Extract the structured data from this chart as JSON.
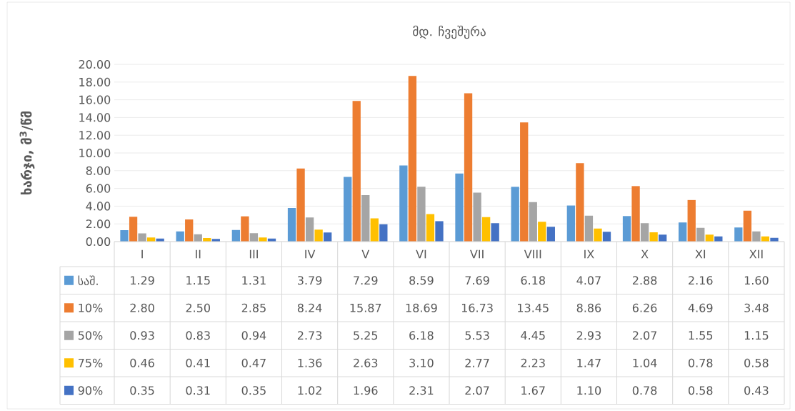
{
  "chart_data": {
    "type": "bar",
    "title": "მდ. ჩვეშურა",
    "ylabel": "ხარჯი, მ$^{3}$/წმ",
    "categories": [
      "I",
      "II",
      "III",
      "IV",
      "V",
      "VI",
      "VII",
      "VIII",
      "IX",
      "X",
      "XI",
      "XII"
    ],
    "series": [
      {
        "name": "საშ.",
        "color": "#5b9bd5",
        "values": [
          1.29,
          1.15,
          1.31,
          3.79,
          7.29,
          8.59,
          7.69,
          6.18,
          4.07,
          2.88,
          2.16,
          1.6
        ],
        "value_labels": [
          "1.29",
          "1.15",
          "1.31",
          "3.79",
          "7.29",
          "8.59",
          "7.69",
          "6.18",
          "4.07",
          "2.88",
          "2.16",
          "1.60"
        ]
      },
      {
        "name": "10%",
        "color": "#ed7d31",
        "values": [
          2.8,
          2.5,
          2.85,
          8.24,
          15.87,
          18.69,
          16.73,
          13.45,
          8.86,
          6.26,
          4.69,
          3.48
        ],
        "value_labels": [
          "2.80",
          "2.50",
          "2.85",
          "8.24",
          "15.87",
          "18.69",
          "16.73",
          "13.45",
          "8.86",
          "6.26",
          "4.69",
          "3.48"
        ]
      },
      {
        "name": "50%",
        "color": "#a5a5a5",
        "values": [
          0.93,
          0.83,
          0.94,
          2.73,
          5.25,
          6.18,
          5.53,
          4.45,
          2.93,
          2.07,
          1.55,
          1.15
        ],
        "value_labels": [
          "0.93",
          "0.83",
          "0.94",
          "2.73",
          "5.25",
          "6.18",
          "5.53",
          "4.45",
          "2.93",
          "2.07",
          "1.55",
          "1.15"
        ]
      },
      {
        "name": "75%",
        "color": "#ffc000",
        "values": [
          0.46,
          0.41,
          0.47,
          1.36,
          2.63,
          3.1,
          2.77,
          2.23,
          1.47,
          1.04,
          0.78,
          0.58
        ],
        "value_labels": [
          "0.46",
          "0.41",
          "0.47",
          "1.36",
          "2.63",
          "3.10",
          "2.77",
          "2.23",
          "1.47",
          "1.04",
          "0.78",
          "0.58"
        ]
      },
      {
        "name": "90%",
        "color": "#4472c4",
        "values": [
          0.35,
          0.31,
          0.35,
          1.02,
          1.96,
          2.31,
          2.07,
          1.67,
          1.1,
          0.78,
          0.58,
          0.43
        ],
        "value_labels": [
          "0.35",
          "0.31",
          "0.35",
          "1.02",
          "1.96",
          "2.31",
          "2.07",
          "1.67",
          "1.10",
          "0.78",
          "0.58",
          "0.43"
        ]
      }
    ],
    "ylim": [
      0,
      20
    ],
    "yticks": [
      {
        "value": 0,
        "label": "0.00"
      },
      {
        "value": 2,
        "label": "2.00"
      },
      {
        "value": 4,
        "label": "4.00"
      },
      {
        "value": 6,
        "label": "6.00"
      },
      {
        "value": 8,
        "label": "8.00"
      },
      {
        "value": 10,
        "label": "10.00"
      },
      {
        "value": 12,
        "label": "12.00"
      },
      {
        "value": 14,
        "label": "14.00"
      },
      {
        "value": 16,
        "label": "16.00"
      },
      {
        "value": 18,
        "label": "18.00"
      },
      {
        "value": 20,
        "label": "20.00"
      }
    ],
    "grid": "y",
    "legend": "bottom"
  }
}
